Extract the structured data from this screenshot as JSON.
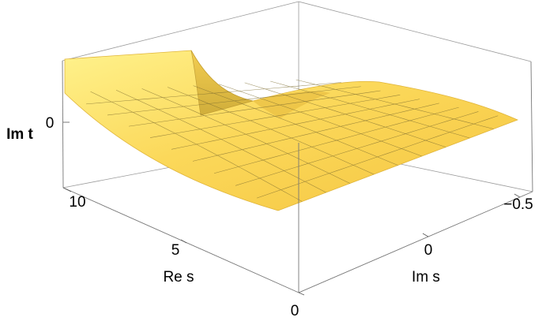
{
  "chart_data": {
    "type": "surface",
    "xlabel": "Re s",
    "ylabel": "Im s",
    "zlabel": "Im t",
    "x_ticks": [
      "0",
      "5",
      "10"
    ],
    "y_ticks": [
      "0",
      "−0.5"
    ],
    "z_ticks": [
      "0"
    ],
    "box": true,
    "grid_mesh": true,
    "colors": {
      "surface": "#f9d04a",
      "surface_light": "#fde98a",
      "mesh": "#8a7a3a",
      "box": "#8c8c8c"
    }
  }
}
